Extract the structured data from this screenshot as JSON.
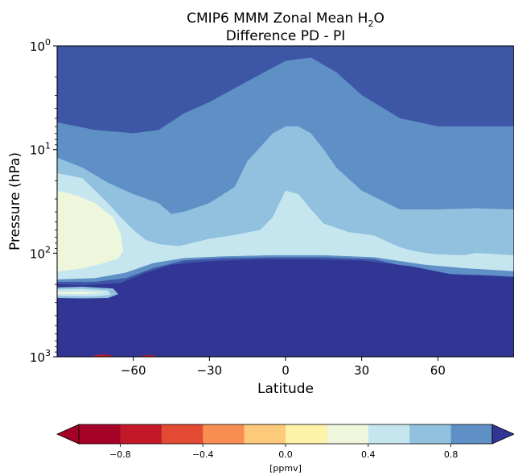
{
  "chart_data": {
    "type": "contour",
    "title_line1_main": "CMIP6 MMM Zonal Mean H",
    "title_line1_sub": "2",
    "title_line1_tail": "O",
    "title_line2": "Difference PD - PI",
    "xlabel": "Latitude",
    "ylabel": "Pressure (hPa)",
    "xlim": [
      -90,
      90
    ],
    "ylim": [
      1000,
      1
    ],
    "y_scale": "log",
    "x_ticks": [
      {
        "value": -60,
        "label": "−60"
      },
      {
        "value": -30,
        "label": "−30"
      },
      {
        "value": 0,
        "label": "0"
      },
      {
        "value": 30,
        "label": "30"
      },
      {
        "value": 60,
        "label": "60"
      }
    ],
    "y_ticks": [
      {
        "value": 1,
        "base": "10",
        "exp": "0"
      },
      {
        "value": 10,
        "base": "10",
        "exp": "1"
      },
      {
        "value": 100,
        "base": "10",
        "exp": "2"
      },
      {
        "value": 1000,
        "base": "10",
        "exp": "3"
      }
    ],
    "colorbar": {
      "unit_label": "[ppmv]",
      "levels": [
        -1.0,
        -0.8,
        -0.6,
        -0.4,
        -0.2,
        0.0,
        0.2,
        0.4,
        0.6,
        0.8,
        1.0
      ],
      "colors": [
        "#a50026",
        "#c2182a",
        "#e34a33",
        "#f88d52",
        "#fdc97a",
        "#fef1a8",
        "#eef7dc",
        "#c5e6ef",
        "#91c1de",
        "#5e8fc5",
        "#3e56a6"
      ],
      "extend_low_color": "#a50026",
      "extend_high_color": "#313695",
      "ticks": [
        {
          "value": -0.8,
          "label": "−0.8"
        },
        {
          "value": -0.4,
          "label": "−0.4"
        },
        {
          "value": 0.0,
          "label": "0.0"
        },
        {
          "value": 0.4,
          "label": "0.4"
        },
        {
          "value": 0.8,
          "label": "0.8"
        }
      ]
    },
    "field_regions": [
      {
        "name": "stratosphere-upper",
        "level": 0.8,
        "color": "#3e56a6",
        "points": [
          [
            -90,
            1
          ],
          [
            90,
            1
          ],
          [
            90,
            1000
          ],
          [
            -90,
            1000
          ]
        ]
      },
      {
        "name": "band-0.6-0.8",
        "level": 0.6,
        "color": "#5e8fc5",
        "points": [
          [
            -90,
            5.5
          ],
          [
            -75,
            6.5
          ],
          [
            -60,
            7
          ],
          [
            -50,
            6.5
          ],
          [
            -40,
            4.5
          ],
          [
            -30,
            3.5
          ],
          [
            -15,
            2.2
          ],
          [
            0,
            1.4
          ],
          [
            10,
            1.3
          ],
          [
            20,
            1.8
          ],
          [
            30,
            3
          ],
          [
            45,
            5
          ],
          [
            60,
            6
          ],
          [
            75,
            6
          ],
          [
            90,
            6
          ],
          [
            90,
            1000
          ],
          [
            -90,
            1000
          ]
        ]
      },
      {
        "name": "band-0.4-0.6",
        "level": 0.4,
        "color": "#91c1de",
        "points": [
          [
            -90,
            12
          ],
          [
            -80,
            15
          ],
          [
            -70,
            21
          ],
          [
            -60,
            27
          ],
          [
            -50,
            33
          ],
          [
            -45,
            42
          ],
          [
            -40,
            40
          ],
          [
            -30,
            33
          ],
          [
            -20,
            23
          ],
          [
            -15,
            13
          ],
          [
            -5,
            7
          ],
          [
            0,
            6
          ],
          [
            5,
            6
          ],
          [
            10,
            7
          ],
          [
            15,
            10
          ],
          [
            20,
            15
          ],
          [
            30,
            25
          ],
          [
            45,
            38
          ],
          [
            60,
            38
          ],
          [
            75,
            37
          ],
          [
            90,
            38
          ],
          [
            90,
            1000
          ],
          [
            -90,
            1000
          ]
        ]
      },
      {
        "name": "band-0.2-0.4",
        "level": 0.2,
        "color": "#c5e6ef",
        "points": [
          [
            -90,
            17
          ],
          [
            -80,
            19
          ],
          [
            -75,
            25
          ],
          [
            -70,
            33
          ],
          [
            -65,
            45
          ],
          [
            -60,
            60
          ],
          [
            -55,
            75
          ],
          [
            -50,
            82
          ],
          [
            -42,
            86
          ],
          [
            -30,
            73
          ],
          [
            -20,
            67
          ],
          [
            -10,
            60
          ],
          [
            -5,
            45
          ],
          [
            0,
            25
          ],
          [
            5,
            27
          ],
          [
            10,
            38
          ],
          [
            15,
            52
          ],
          [
            25,
            63
          ],
          [
            35,
            68
          ],
          [
            45,
            88
          ],
          [
            50,
            95
          ],
          [
            55,
            100
          ],
          [
            60,
            103
          ],
          [
            70,
            105
          ],
          [
            75,
            100
          ],
          [
            90,
            105
          ],
          [
            90,
            1000
          ],
          [
            -90,
            1000
          ]
        ]
      },
      {
        "name": "band-0.0-0.2",
        "level": 0.0,
        "color": "#eef7dc",
        "points": [
          [
            -90,
            25
          ],
          [
            -82,
            28
          ],
          [
            -75,
            33
          ],
          [
            -68,
            45
          ],
          [
            -65,
            65
          ],
          [
            -64,
            95
          ],
          [
            -66,
            112
          ],
          [
            -72,
            125
          ],
          [
            -80,
            140
          ],
          [
            -90,
            150
          ],
          [
            -90,
            1000
          ]
        ]
      },
      {
        "name": "tropopause-ridge",
        "level": 0.6,
        "color": "#5e8fc5",
        "points": [
          [
            -90,
            180
          ],
          [
            -75,
            175
          ],
          [
            -63,
            155
          ],
          [
            -52,
            125
          ],
          [
            -40,
            112
          ],
          [
            -25,
            108
          ],
          [
            -5,
            105
          ],
          [
            15,
            105
          ],
          [
            35,
            110
          ],
          [
            55,
            130
          ],
          [
            70,
            140
          ],
          [
            90,
            150
          ],
          [
            90,
            1000
          ],
          [
            -90,
            1000
          ]
        ]
      },
      {
        "name": "upper-troposphere-band",
        "level": 0.8,
        "color": "#3e56a6",
        "points": [
          [
            -90,
            190
          ],
          [
            -75,
            190
          ],
          [
            -63,
            175
          ],
          [
            -52,
            140
          ],
          [
            -40,
            118
          ],
          [
            -25,
            112
          ],
          [
            -5,
            110
          ],
          [
            15,
            110
          ],
          [
            35,
            115
          ],
          [
            55,
            150
          ],
          [
            70,
            165
          ],
          [
            90,
            175
          ],
          [
            90,
            1000
          ],
          [
            -90,
            1000
          ]
        ]
      },
      {
        "name": "troposphere",
        "level": 1.0,
        "color": "#313695",
        "points": [
          [
            -90,
            200
          ],
          [
            -80,
            205
          ],
          [
            -65,
            195
          ],
          [
            -55,
            155
          ],
          [
            -45,
            130
          ],
          [
            -30,
            120
          ],
          [
            -10,
            115
          ],
          [
            10,
            115
          ],
          [
            30,
            118
          ],
          [
            50,
            135
          ],
          [
            65,
            160
          ],
          [
            80,
            165
          ],
          [
            90,
            170
          ],
          [
            90,
            1000
          ],
          [
            -90,
            1000
          ]
        ]
      },
      {
        "name": "low-strip-outer",
        "level": 0.4,
        "color": "#91c1de",
        "points": [
          [
            -90,
            215
          ],
          [
            -80,
            212
          ],
          [
            -68,
            220
          ],
          [
            -66,
            248
          ],
          [
            -70,
            270
          ],
          [
            -80,
            272
          ],
          [
            -90,
            270
          ]
        ]
      },
      {
        "name": "low-strip-inner",
        "level": 0.2,
        "color": "#c5e6ef",
        "points": [
          [
            -90,
            225
          ],
          [
            -80,
            222
          ],
          [
            -70,
            230
          ],
          [
            -69,
            252
          ],
          [
            -75,
            260
          ],
          [
            -90,
            258
          ]
        ]
      },
      {
        "name": "low-strip-core",
        "level": 0.0,
        "color": "#eef7dc",
        "points": [
          [
            -90,
            238
          ],
          [
            -80,
            236
          ],
          [
            -72,
            242
          ],
          [
            -80,
            247
          ],
          [
            -90,
            246
          ]
        ]
      },
      {
        "name": "surface-dip-1",
        "level": -0.8,
        "color": "#c2182a",
        "points": [
          [
            -76,
            1000
          ],
          [
            -75,
            970
          ],
          [
            -72,
            955
          ],
          [
            -69,
            970
          ],
          [
            -68,
            1000
          ]
        ]
      },
      {
        "name": "surface-dip-2",
        "level": -0.8,
        "color": "#c2182a",
        "points": [
          [
            -57,
            1000
          ],
          [
            -56,
            975
          ],
          [
            -54,
            965
          ],
          [
            -52,
            975
          ],
          [
            -51,
            1000
          ]
        ]
      }
    ]
  }
}
